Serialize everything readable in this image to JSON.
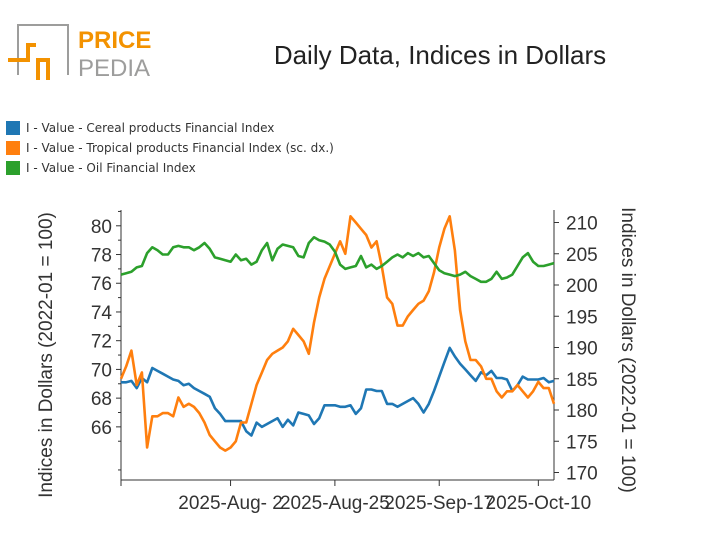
{
  "brand": {
    "word_top": "PRICE",
    "word_bottom": "PEDIA",
    "accent": "#F39200",
    "gray": "#9d9d9c"
  },
  "title": "Daily Data, Indices in Dollars",
  "legend": [
    {
      "label": "I - Value - Cereal products Financial Index",
      "color": "#1f77b4"
    },
    {
      "label": "I - Value - Tropical products Financial Index (sc. dx.)",
      "color": "#ff7f0e"
    },
    {
      "label": "I - Value - Oil Financial Index",
      "color": "#2ca02c"
    }
  ],
  "chart_data": {
    "type": "line",
    "title": "Daily Data, Indices in Dollars",
    "ylabel": "Indices in Dollars (2022-01 = 100)",
    "y2label": "Indices in Dollars (2022-01 = 100)",
    "ylim": [
      62.3,
      81.1
    ],
    "y2lim": [
      168.8,
      212
    ],
    "yticks": [
      66,
      68,
      70,
      72,
      74,
      76,
      78,
      80
    ],
    "y2ticks": [
      170,
      175,
      180,
      185,
      190,
      195,
      200,
      205,
      210
    ],
    "xticks": [
      "2025-Aug- 2",
      "2025-Aug-25",
      "2025-Sep-17",
      "2025-Oct-10"
    ],
    "xtick_index": [
      21,
      41,
      61,
      80
    ],
    "grid": false,
    "series": [
      {
        "name": "I - Value - Cereal products Financial Index",
        "axis": "left",
        "color": "#1f77b4",
        "values": [
          69.1,
          69.1,
          69.2,
          68.7,
          69.4,
          69.1,
          70.1,
          69.9,
          69.7,
          69.5,
          69.3,
          69.2,
          68.9,
          69.0,
          68.7,
          68.5,
          68.3,
          68.1,
          67.3,
          66.9,
          66.4,
          66.4,
          66.4,
          66.4,
          65.7,
          65.4,
          66.3,
          66.0,
          66.2,
          66.4,
          66.6,
          66.0,
          66.5,
          66.1,
          67.0,
          66.9,
          66.8,
          66.2,
          66.6,
          67.5,
          67.5,
          67.5,
          67.4,
          67.4,
          67.5,
          66.9,
          67.3,
          68.6,
          68.6,
          68.5,
          68.5,
          67.6,
          67.6,
          67.4,
          67.6,
          67.8,
          68.0,
          67.6,
          67.0,
          67.6,
          68.5,
          69.5,
          70.5,
          71.5,
          70.9,
          70.4,
          70.0,
          69.6,
          69.2,
          69.8,
          69.6,
          69.9,
          69.4,
          69.4,
          69.3,
          68.5,
          68.9,
          69.5,
          69.3,
          69.3,
          69.3,
          69.4,
          69.1,
          69.2
        ]
      },
      {
        "name": "I - Value - Tropical products Financial Index (sc. dx.)",
        "axis": "right",
        "color": "#ff7f0e",
        "values": [
          185,
          187,
          189.5,
          184,
          186,
          174,
          179,
          179,
          179.5,
          179.5,
          179,
          182,
          180.5,
          181,
          180.5,
          179.5,
          178,
          176,
          175,
          174,
          173.5,
          174,
          175,
          178,
          178,
          181,
          184,
          186,
          188,
          189,
          189.5,
          190,
          191,
          193,
          192,
          191,
          189,
          194,
          198,
          201,
          203,
          205,
          207,
          205,
          211,
          210,
          209,
          208,
          206,
          207,
          203,
          198,
          197,
          193.5,
          193.5,
          195,
          196,
          197,
          197.5,
          199,
          202,
          206,
          209,
          211,
          205.5,
          196,
          191,
          188,
          188,
          187,
          185,
          185,
          183,
          182,
          183,
          183,
          184,
          183,
          182,
          183,
          184.5,
          183.5,
          183.5,
          181
        ]
      },
      {
        "name": "I - Value - Oil Financial Index",
        "axis": "left",
        "color": "#2ca02c",
        "values": [
          76.6,
          76.7,
          76.8,
          77.1,
          77.2,
          78.1,
          78.5,
          78.3,
          78.0,
          78.0,
          78.5,
          78.6,
          78.5,
          78.5,
          78.3,
          78.5,
          78.8,
          78.4,
          77.8,
          77.7,
          77.6,
          77.5,
          78.0,
          77.6,
          77.7,
          77.3,
          77.5,
          78.3,
          78.8,
          77.6,
          78.4,
          78.7,
          78.6,
          78.5,
          77.9,
          77.8,
          78.8,
          79.2,
          79.0,
          78.9,
          78.7,
          78.2,
          77.3,
          77.0,
          77.1,
          77.2,
          77.9,
          77.1,
          77.3,
          77.0,
          77.2,
          77.5,
          77.8,
          78.0,
          77.8,
          78.1,
          77.9,
          78.1,
          77.8,
          77.9,
          77.4,
          76.9,
          76.7,
          76.6,
          76.5,
          76.6,
          76.8,
          76.5,
          76.3,
          76.1,
          76.1,
          76.3,
          76.8,
          76.3,
          76.4,
          76.6,
          77.2,
          77.8,
          78.1,
          77.5,
          77.2,
          77.2,
          77.3,
          77.4
        ]
      }
    ]
  }
}
